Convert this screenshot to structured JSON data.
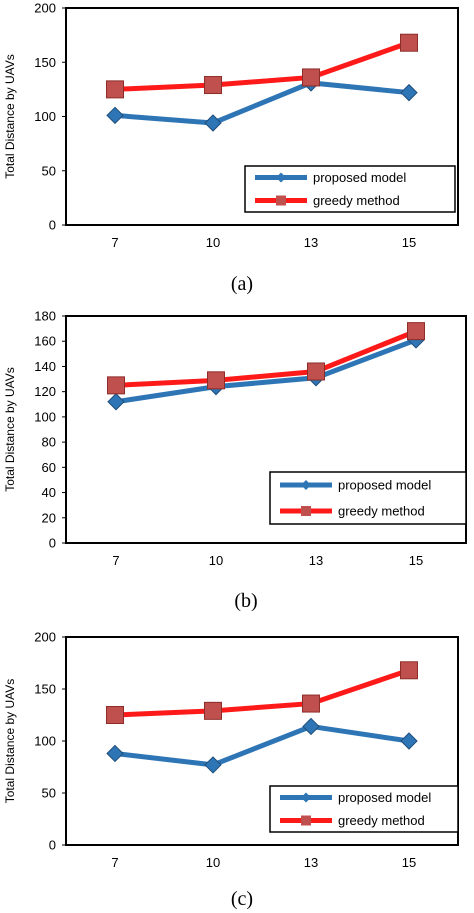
{
  "colors": {
    "proposed": "#2e75b6",
    "greedy": "#ff1a1a",
    "greedy_marker": "#c0504d",
    "frame": "#000000"
  },
  "chart_data": [
    {
      "type": "line",
      "caption": "(a)",
      "ylabel": "Total Distance by UAVs",
      "categories": [
        "7",
        "10",
        "13",
        "15"
      ],
      "ylim": [
        0,
        200
      ],
      "yticks": [
        "0",
        "50",
        "100",
        "150",
        "200"
      ],
      "series": [
        {
          "name": "proposed model",
          "values": [
            101,
            94,
            131,
            122
          ],
          "marker": "diamond"
        },
        {
          "name": "greedy method",
          "values": [
            125,
            129,
            136,
            168
          ],
          "marker": "square"
        }
      ],
      "legend": "bottom-right",
      "grid": false
    },
    {
      "type": "line",
      "caption": "(b)",
      "ylabel": "Total Distance by UAVs",
      "categories": [
        "7",
        "10",
        "13",
        "15"
      ],
      "ylim": [
        0,
        180
      ],
      "yticks": [
        "0",
        "20",
        "40",
        "60",
        "80",
        "100",
        "120",
        "140",
        "160",
        "180"
      ],
      "series": [
        {
          "name": "proposed model",
          "values": [
            112,
            124,
            131,
            161
          ],
          "marker": "diamond"
        },
        {
          "name": "greedy method",
          "values": [
            125,
            129,
            136,
            168
          ],
          "marker": "square"
        }
      ],
      "legend": "bottom-right",
      "grid": false
    },
    {
      "type": "line",
      "caption": "(c)",
      "ylabel": "Total Distance by UAVs",
      "categories": [
        "7",
        "10",
        "13",
        "15"
      ],
      "ylim": [
        0,
        200
      ],
      "yticks": [
        "0",
        "50",
        "100",
        "150",
        "200"
      ],
      "series": [
        {
          "name": "proposed model",
          "values": [
            88,
            77,
            114,
            100
          ],
          "marker": "diamond"
        },
        {
          "name": "greedy method",
          "values": [
            125,
            129,
            136,
            168
          ],
          "marker": "square"
        }
      ],
      "legend": "bottom-right",
      "grid": false
    }
  ]
}
